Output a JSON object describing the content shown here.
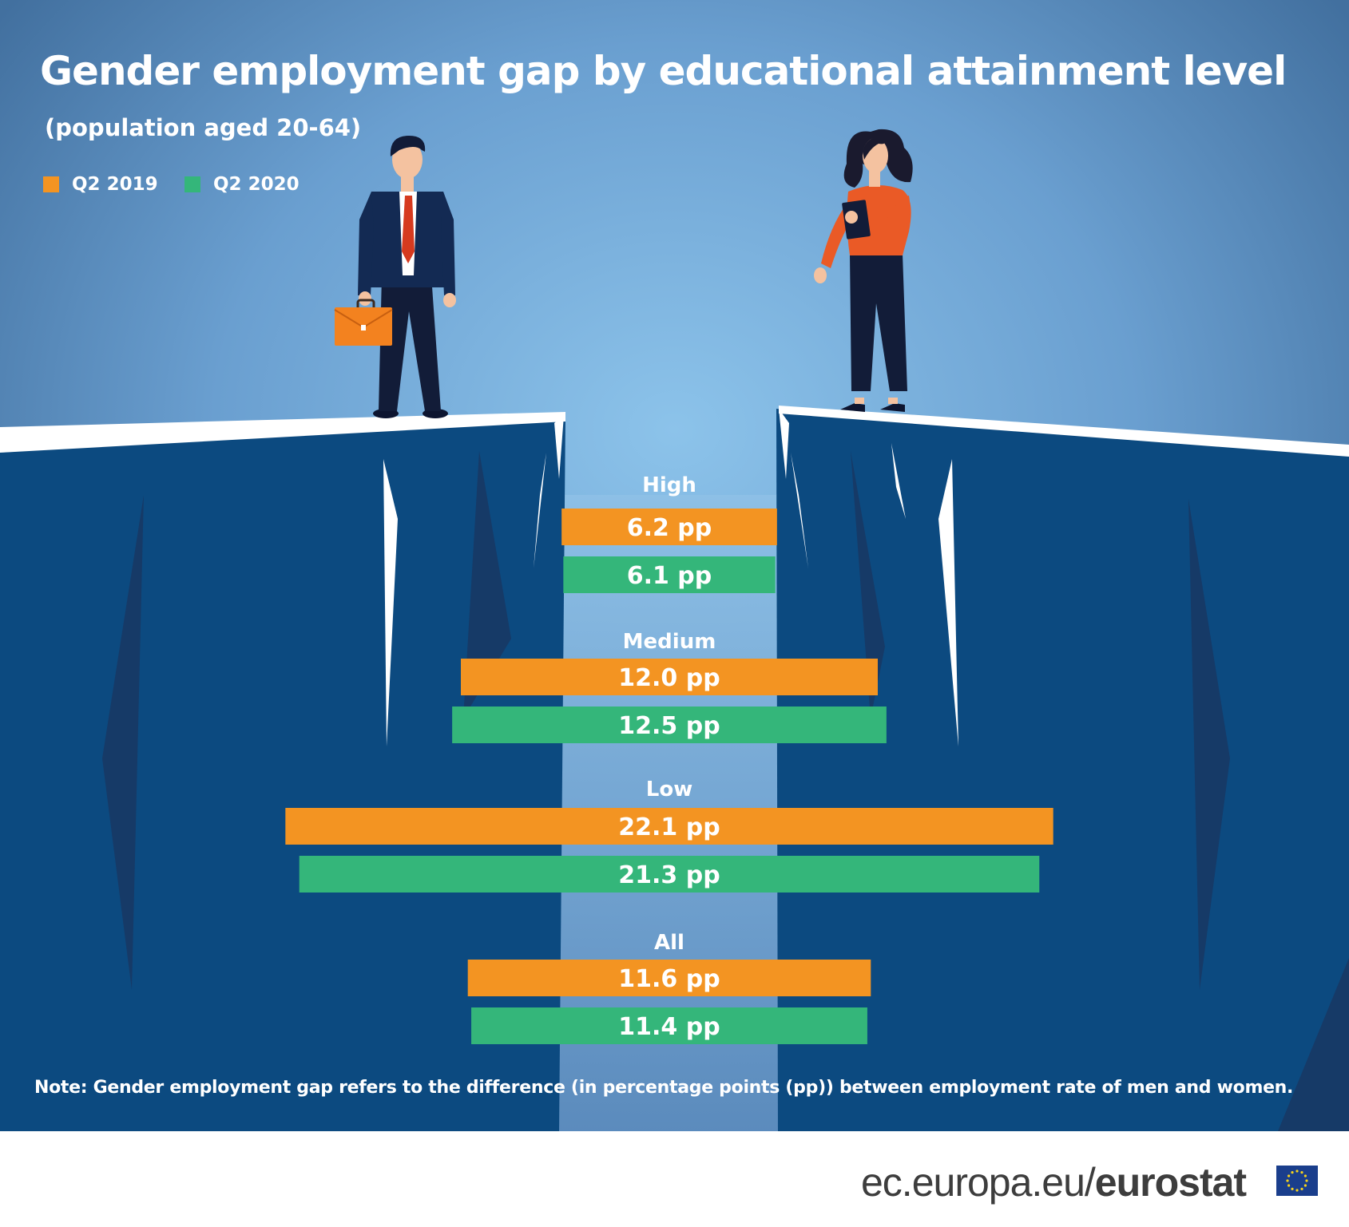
{
  "title": "Gender employment gap by educational attainment level",
  "subtitle": "(population aged 20-64)",
  "note": "Note: Gender employment gap refers to the difference (in percentage points (pp)) between employment rate of men and women.",
  "source": {
    "domain": "ec.europa.eu/",
    "brand": "eurostat"
  },
  "icons": [
    "businessman-icon",
    "businesswoman-icon",
    "briefcase-icon",
    "eu-flag-icon"
  ],
  "colors": {
    "q2_2019": "#f39422",
    "q2_2020": "#34b67a",
    "background": "#4f86bf",
    "cliff": "#0c4a80"
  },
  "chart_data": {
    "type": "bar",
    "title": "Gender employment gap by educational attainment level",
    "subtitle": "(population aged 20-64)",
    "categories": [
      "High",
      "Medium",
      "Low",
      "All"
    ],
    "unit": "pp",
    "legend_position": "top-left",
    "series": [
      {
        "name": "Q2 2019",
        "color": "#f39422",
        "values": [
          6.2,
          12.0,
          22.1,
          11.6
        ],
        "labels": [
          "6.2 pp",
          "12.0 pp",
          "22.1 pp",
          "11.6 pp"
        ]
      },
      {
        "name": "Q2 2020",
        "color": "#34b67a",
        "values": [
          6.1,
          12.5,
          21.3,
          11.4
        ],
        "labels": [
          "6.1 pp",
          "12.5 pp",
          "21.3 pp",
          "11.4 pp"
        ]
      }
    ]
  }
}
